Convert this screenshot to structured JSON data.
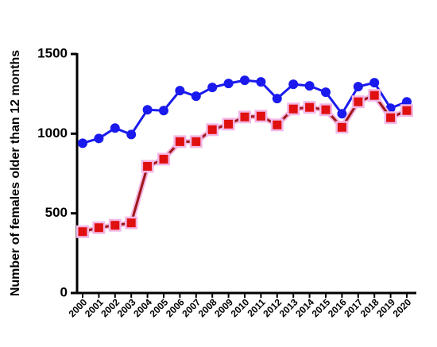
{
  "chart_data": {
    "type": "line",
    "y_label": "Number of females older than 12 months",
    "categories": [
      "2000",
      "2001",
      "2002",
      "2003",
      "2004",
      "2005",
      "2006",
      "2007",
      "2008",
      "2009",
      "2010",
      "2011",
      "2012",
      "2013",
      "2014",
      "2015",
      "2016",
      "2017",
      "2018",
      "2019",
      "2020"
    ],
    "series": [
      {
        "color": "#1a1aee",
        "marker": "circle",
        "values": [
          940,
          970,
          1035,
          995,
          1150,
          1145,
          1270,
          1235,
          1290,
          1315,
          1335,
          1325,
          1220,
          1310,
          1300,
          1260,
          1125,
          1295,
          1320,
          1160,
          1200
        ]
      },
      {
        "color": "#e01010",
        "line_color": "#a01818",
        "halo_color": "#f3b8e6",
        "marker": "square",
        "values": [
          385,
          410,
          425,
          440,
          795,
          840,
          950,
          950,
          1025,
          1060,
          1105,
          1110,
          1055,
          1155,
          1165,
          1150,
          1040,
          1200,
          1240,
          1100,
          1145
        ]
      }
    ],
    "ylim": [
      0,
      1500
    ],
    "yticks": [
      0,
      500,
      1000,
      1500
    ],
    "grid": false
  }
}
